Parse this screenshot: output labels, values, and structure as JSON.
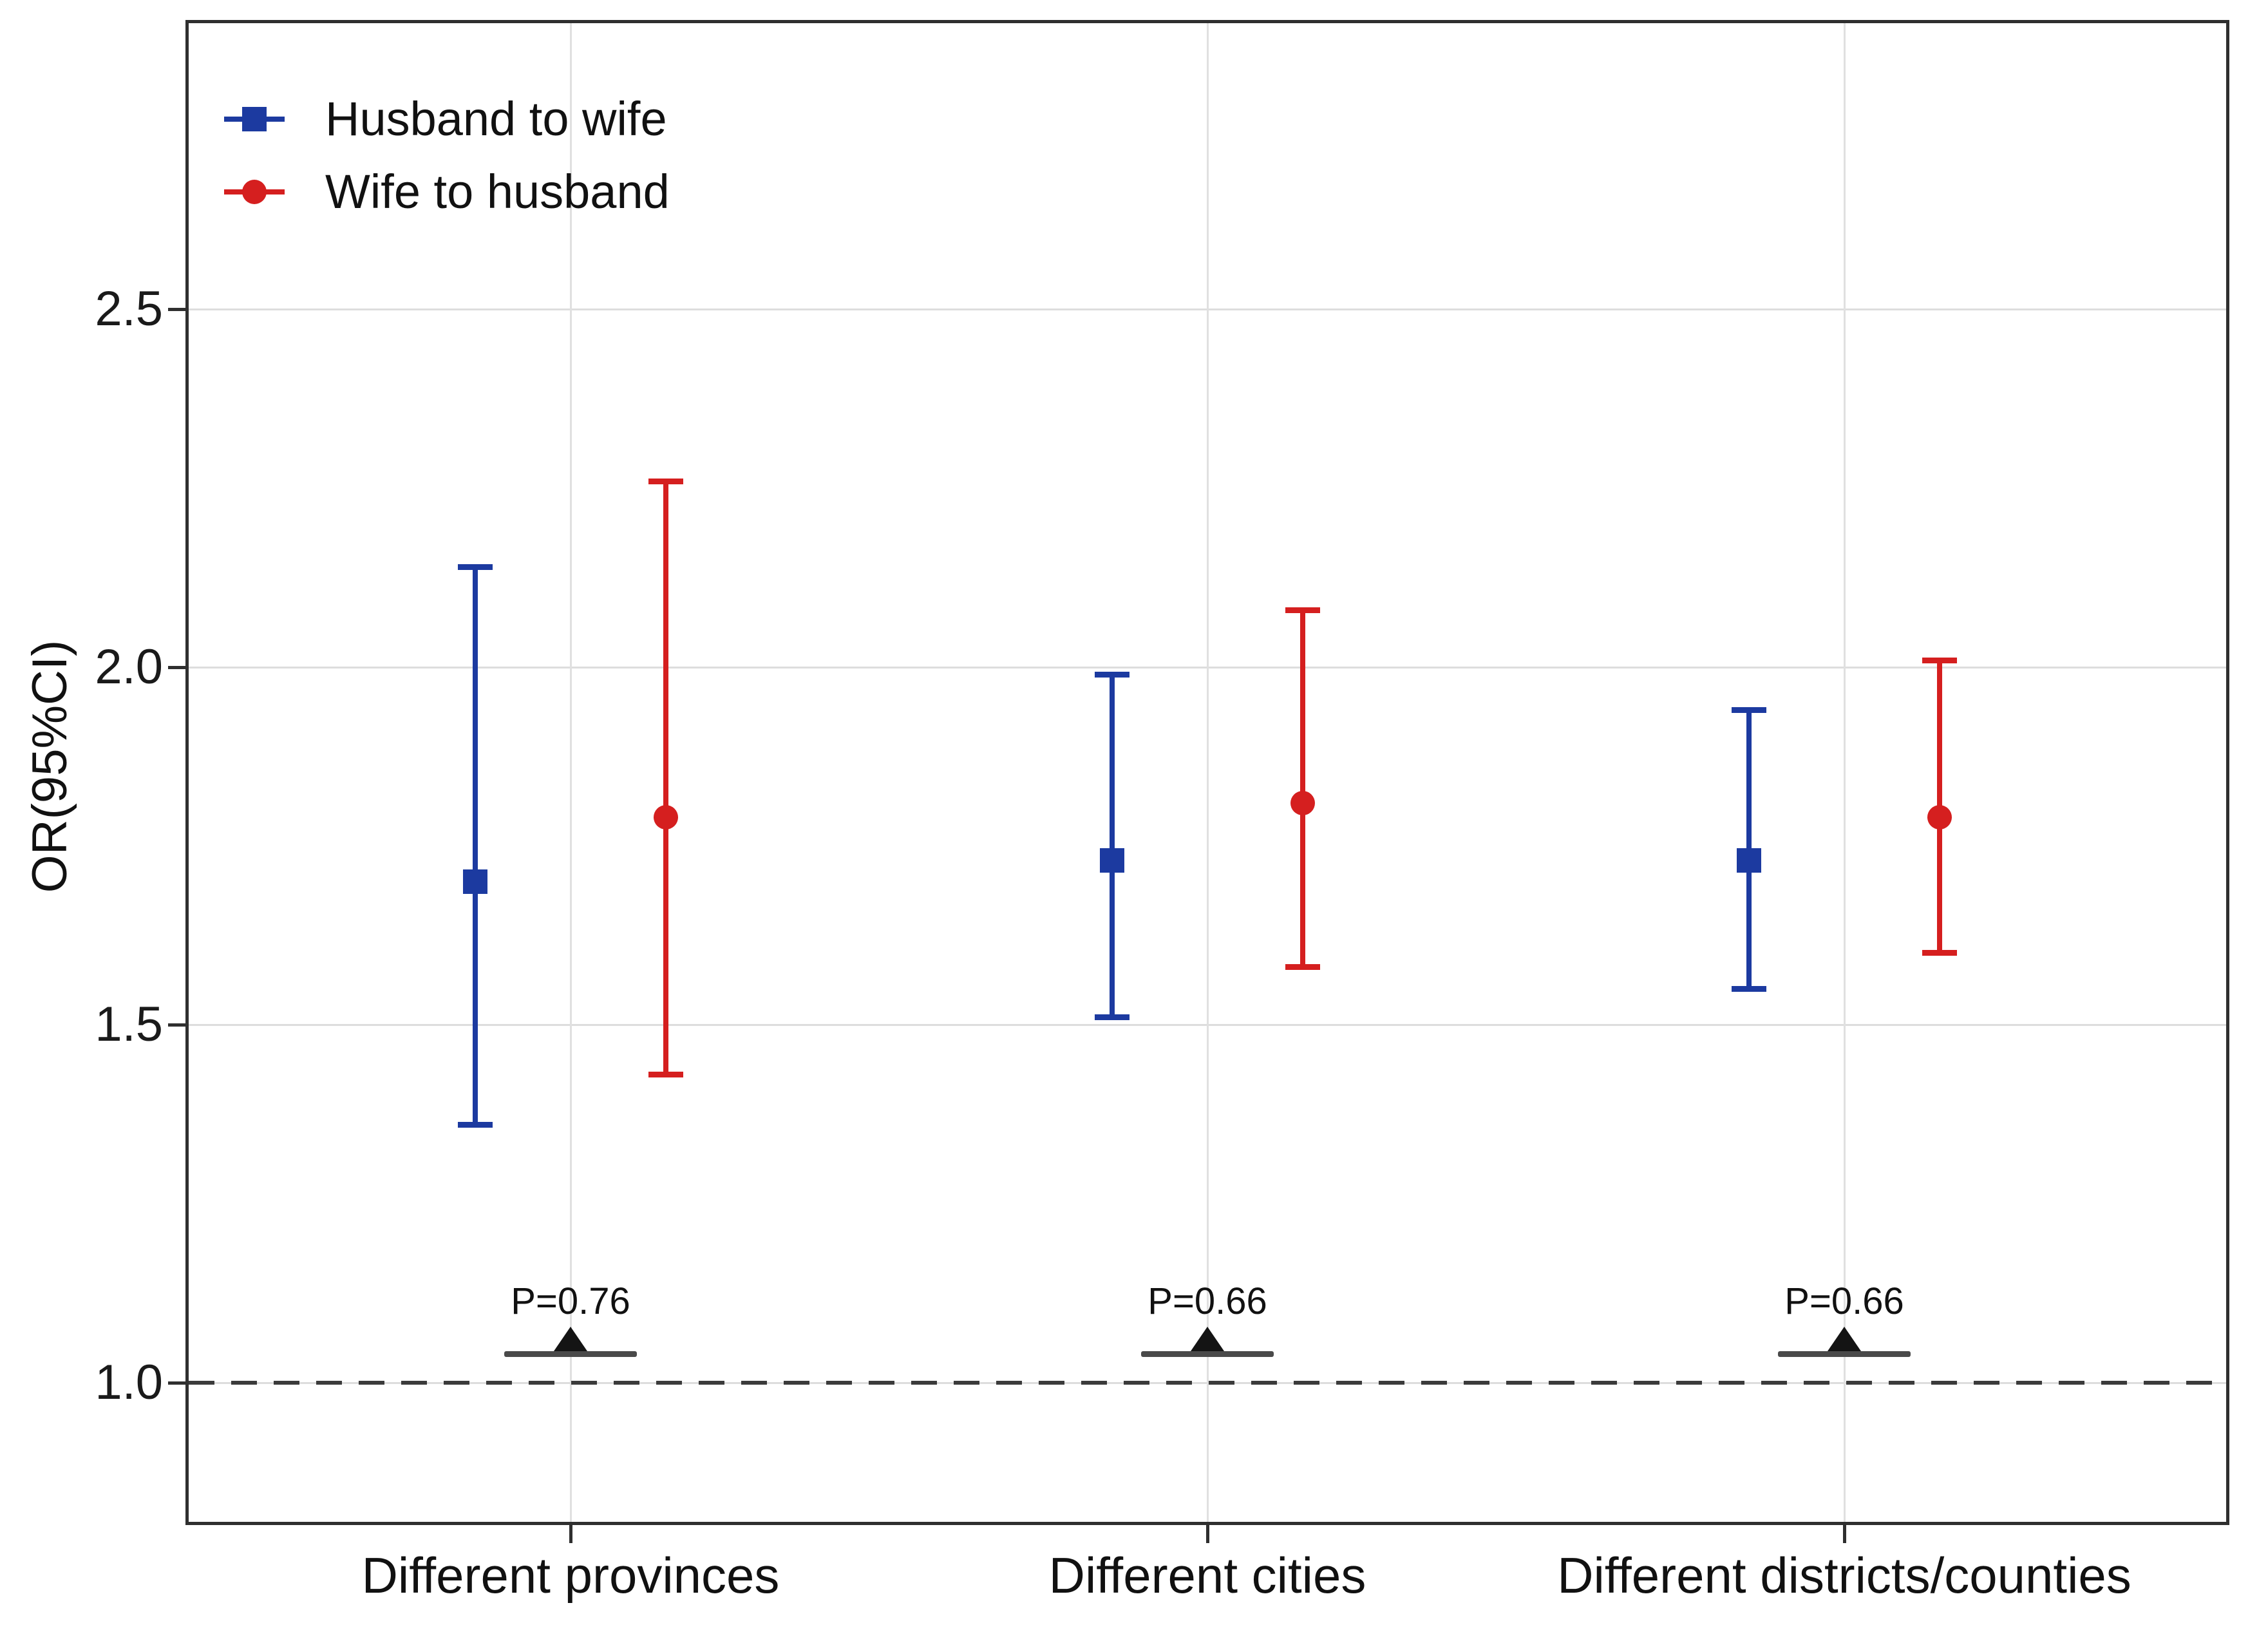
{
  "chart_data": {
    "type": "pointrange",
    "title": "",
    "xlabel": "",
    "ylabel": "OR(95%CI)",
    "yticks": [
      "1.0",
      "1.5",
      "2.0",
      "2.5"
    ],
    "ylim": [
      0.81,
      2.9
    ],
    "grid": true,
    "legend_position": "top-left-inside",
    "reference_line": {
      "y": 1.0,
      "style": "dashed"
    },
    "categories": [
      "Different provinces",
      "Different cities",
      "Different districts/counties"
    ],
    "series": [
      {
        "name": "Husband to wife",
        "marker": "square",
        "color": "#1c3aa0",
        "values": [
          {
            "category": "Different provinces",
            "or": 1.7,
            "ci_low": 1.36,
            "ci_high": 2.14
          },
          {
            "category": "Different cities",
            "or": 1.73,
            "ci_low": 1.51,
            "ci_high": 1.99
          },
          {
            "category": "Different districts/counties",
            "or": 1.73,
            "ci_low": 1.55,
            "ci_high": 1.94
          }
        ]
      },
      {
        "name": "Wife to husband",
        "marker": "circle",
        "color": "#d51f1f",
        "values": [
          {
            "category": "Different provinces",
            "or": 1.79,
            "ci_low": 1.43,
            "ci_high": 2.26
          },
          {
            "category": "Different cities",
            "or": 1.81,
            "ci_low": 1.58,
            "ci_high": 2.08
          },
          {
            "category": "Different districts/counties",
            "or": 1.79,
            "ci_low": 1.6,
            "ci_high": 2.01
          }
        ]
      }
    ],
    "p_annotations": [
      {
        "category": "Different provinces",
        "label": "P=0.76"
      },
      {
        "category": "Different cities",
        "label": "P=0.66"
      },
      {
        "category": "Different districts/counties",
        "label": "P=0.66"
      }
    ],
    "colors": {
      "husband_to_wife": "#1c3aa0",
      "wife_to_husband": "#d51f1f",
      "grid": "#dddddd",
      "axis": "#2f2f2f",
      "reference_line": "#3b3b3b",
      "bracket": "#4a4a4a"
    }
  }
}
